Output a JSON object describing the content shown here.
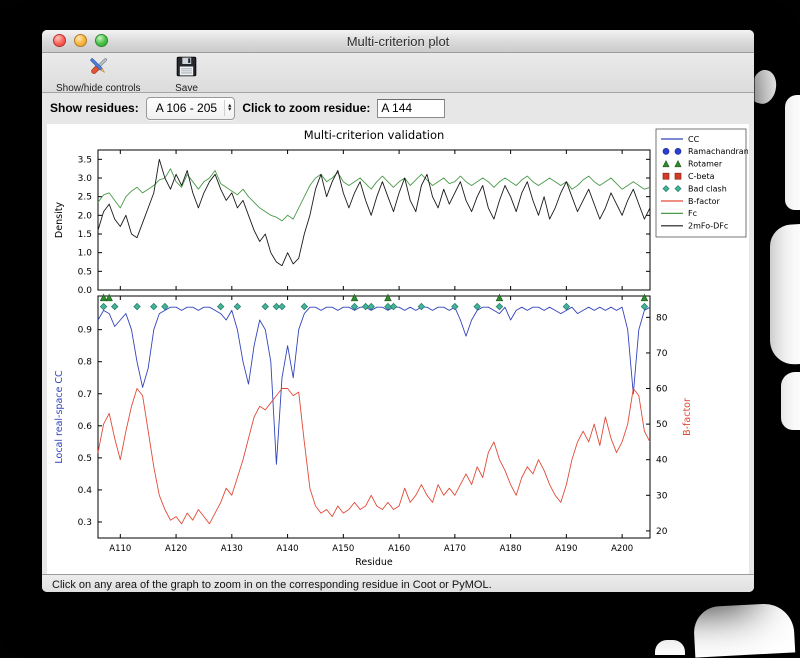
{
  "window": {
    "title": "Multi-criterion plot",
    "toolbar": {
      "show_hide_label": "Show/hide controls",
      "save_label": "Save"
    },
    "controls": {
      "show_residues_label": "Show residues:",
      "residue_range_value": "A 106 - 205",
      "zoom_label": "Click to zoom residue:",
      "zoom_value": "A 144"
    },
    "status_text": "Click on any area of the graph to zoom in on the corresponding residue in Coot or PyMOL."
  },
  "chart_data": {
    "type": "line",
    "title": "Multi-criterion validation",
    "x_label": "Residue",
    "x_start": 106,
    "x_end": 205,
    "x_ticks": [
      110,
      120,
      130,
      140,
      150,
      160,
      170,
      180,
      190,
      200
    ],
    "x_tick_labels": [
      "A110",
      "A120",
      "A130",
      "A140",
      "A150",
      "A160",
      "A170",
      "A180",
      "A190",
      "A200"
    ],
    "top_plot": {
      "y_label": "Density",
      "ylim": [
        0,
        3.75
      ],
      "y_ticks": [
        0,
        0.5,
        1,
        1.5,
        2,
        2.5,
        3,
        3.5
      ],
      "grid": false,
      "series": [
        {
          "name": "Fc",
          "color": "#4a9a4a",
          "values": [
            2.35,
            2.55,
            2.6,
            2.4,
            2.2,
            2.5,
            2.65,
            2.75,
            2.6,
            2.7,
            2.8,
            2.95,
            3.0,
            3.25,
            2.9,
            2.75,
            3.1,
            2.9,
            2.7,
            2.9,
            3.0,
            3.2,
            2.85,
            2.75,
            2.65,
            2.55,
            2.7,
            2.5,
            2.35,
            2.2,
            2.1,
            2.0,
            1.95,
            1.85,
            2.0,
            1.9,
            2.2,
            2.5,
            2.8,
            3.0,
            3.1,
            2.9,
            3.0,
            3.15,
            2.9,
            2.8,
            2.9,
            3.0,
            2.85,
            2.7,
            2.9,
            3.05,
            2.9,
            2.75,
            2.9,
            3.0,
            2.8,
            2.95,
            3.1,
            2.95,
            2.8,
            2.9,
            3.0,
            2.85,
            2.9,
            3.05,
            2.9,
            2.8,
            2.9,
            3.0,
            2.9,
            2.75,
            2.9,
            3.0,
            2.9,
            2.8,
            2.95,
            3.05,
            2.9,
            2.8,
            2.9,
            3.0,
            2.9,
            2.8,
            2.9,
            2.7,
            2.8,
            2.95,
            3.05,
            2.9,
            2.8,
            2.9,
            3.0,
            2.85,
            2.7,
            2.8,
            2.9,
            2.8,
            2.7,
            2.75
          ]
        },
        {
          "name": "2mFo-DFc",
          "color": "#1a1a1a",
          "values": [
            1.6,
            2.1,
            2.3,
            1.9,
            1.7,
            2.0,
            1.5,
            1.4,
            1.8,
            2.2,
            2.6,
            3.5,
            3.0,
            2.7,
            3.1,
            2.8,
            3.2,
            2.6,
            2.2,
            2.6,
            2.9,
            3.1,
            2.7,
            2.4,
            2.6,
            2.2,
            2.4,
            2.0,
            1.6,
            1.3,
            1.5,
            1.0,
            0.75,
            0.65,
            1.0,
            0.7,
            0.85,
            1.5,
            2.0,
            2.7,
            3.1,
            2.5,
            2.9,
            3.2,
            2.6,
            2.2,
            2.6,
            2.9,
            2.4,
            2.0,
            2.5,
            2.9,
            2.5,
            2.1,
            2.6,
            3.0,
            2.4,
            2.1,
            2.8,
            3.1,
            2.5,
            2.2,
            2.7,
            2.3,
            2.6,
            2.9,
            2.4,
            2.1,
            2.5,
            2.8,
            2.2,
            1.9,
            2.4,
            2.8,
            2.5,
            2.1,
            2.6,
            2.9,
            2.4,
            2.0,
            2.5,
            1.9,
            2.2,
            2.6,
            2.9,
            2.5,
            2.1,
            2.4,
            2.7,
            2.3,
            1.9,
            2.2,
            2.6,
            2.3,
            2.0,
            2.4,
            2.7,
            2.3,
            1.9,
            2.2
          ]
        }
      ]
    },
    "bottom_plot": {
      "left_label": "Local real-space CC",
      "left_color": "#3344bb",
      "left_lim": [
        0.25,
        1.005
      ],
      "left_ticks": [
        0.3,
        0.4,
        0.5,
        0.6,
        0.7,
        0.8,
        0.9
      ],
      "right_label": "B-factor",
      "right_color": "#e04b38",
      "right_lim": [
        18,
        86
      ],
      "right_ticks": [
        20,
        30,
        40,
        50,
        60,
        70,
        80
      ],
      "cc": {
        "name": "CC",
        "color": "#3344bb",
        "values": [
          0.93,
          0.96,
          0.95,
          0.91,
          0.93,
          0.95,
          0.9,
          0.8,
          0.72,
          0.78,
          0.9,
          0.95,
          0.96,
          0.97,
          0.97,
          0.96,
          0.97,
          0.97,
          0.96,
          0.97,
          0.97,
          0.96,
          0.95,
          0.93,
          0.96,
          0.9,
          0.8,
          0.73,
          0.85,
          0.93,
          0.9,
          0.8,
          0.48,
          0.75,
          0.85,
          0.75,
          0.9,
          0.95,
          0.97,
          0.97,
          0.96,
          0.97,
          0.97,
          0.96,
          0.97,
          0.97,
          0.96,
          0.97,
          0.97,
          0.96,
          0.97,
          0.97,
          0.96,
          0.97,
          0.97,
          0.96,
          0.97,
          0.96,
          0.97,
          0.97,
          0.96,
          0.97,
          0.97,
          0.96,
          0.97,
          0.93,
          0.88,
          0.93,
          0.96,
          0.97,
          0.97,
          0.96,
          0.95,
          0.97,
          0.93,
          0.96,
          0.97,
          0.96,
          0.97,
          0.97,
          0.96,
          0.97,
          0.96,
          0.95,
          0.96,
          0.97,
          0.95,
          0.96,
          0.97,
          0.96,
          0.97,
          0.96,
          0.97,
          0.96,
          0.97,
          0.9,
          0.7,
          0.9,
          0.96,
          0.97
        ]
      },
      "bfactor": {
        "name": "B-factor",
        "color": "#e04b38",
        "values": [
          42,
          50,
          53,
          46,
          40,
          48,
          55,
          60,
          58,
          48,
          38,
          30,
          26,
          23,
          24,
          22,
          25,
          23,
          26,
          24,
          22,
          25,
          28,
          32,
          30,
          35,
          40,
          46,
          52,
          55,
          54,
          56,
          58,
          60,
          60,
          58,
          59,
          45,
          32,
          27,
          25,
          26,
          24,
          27,
          25,
          26,
          28,
          26,
          27,
          30,
          27,
          26,
          28,
          26,
          27,
          32,
          28,
          30,
          33,
          30,
          28,
          33,
          30,
          32,
          30,
          33,
          36,
          33,
          38,
          35,
          42,
          45,
          40,
          37,
          33,
          30,
          35,
          38,
          36,
          40,
          37,
          33,
          30,
          28,
          33,
          40,
          45,
          48,
          45,
          50,
          44,
          52,
          46,
          42,
          45,
          50,
          60,
          58,
          48,
          45
        ]
      },
      "markers": [
        {
          "name": "rotamer-outliers",
          "shape": "triangle",
          "color": "#2e8b2e",
          "edge": "#1d5c1d",
          "value": 1.0,
          "residues": [
            107,
            108,
            152,
            158,
            178,
            204
          ]
        },
        {
          "name": "bad-clashes",
          "shape": "diamond",
          "color": "#45b39a",
          "edge": "#1e7a66",
          "value": 0.972,
          "residues": [
            107,
            109,
            113,
            116,
            118,
            128,
            131,
            136,
            138,
            139,
            143,
            152,
            154,
            155,
            158,
            159,
            164,
            170,
            174,
            178,
            190,
            204
          ]
        }
      ]
    },
    "legend": [
      {
        "label": "CC",
        "type": "line",
        "color": "#3344bb"
      },
      {
        "label": "Ramachandran",
        "type": "circle",
        "color": "#2a3fd0",
        "edge": "#1b2a94"
      },
      {
        "label": "Rotamer",
        "type": "triangle",
        "color": "#2e8b2e",
        "edge": "#1d5c1d"
      },
      {
        "label": "C-beta",
        "type": "square",
        "color": "#d23b2a",
        "edge": "#8f2518"
      },
      {
        "label": "Bad clash",
        "type": "diamond",
        "color": "#45b39a",
        "edge": "#1e7a66"
      },
      {
        "label": "B-factor",
        "type": "line",
        "color": "#e04b38"
      },
      {
        "label": "Fc",
        "type": "line",
        "color": "#4a9a4a"
      },
      {
        "label": "2mFo-DFc",
        "type": "line",
        "color": "#1a1a1a"
      }
    ]
  }
}
